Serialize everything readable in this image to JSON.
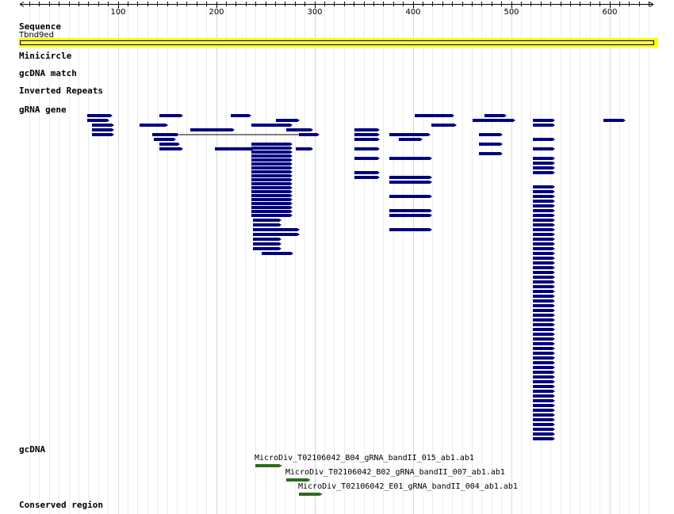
{
  "ruler": {
    "ticks": [
      "100",
      "200",
      "300",
      "400",
      "500",
      "600"
    ],
    "tick_positions_bp": [
      100,
      200,
      300,
      400,
      500,
      600
    ],
    "start_bp": 1,
    "end_bp": 650
  },
  "tracks": {
    "sequence": {
      "label": "Sequence",
      "sublabel": "Tbnd9ed",
      "highlight_color": "#ffff00"
    },
    "minicircle": {
      "label": "Minicircle"
    },
    "gcdna_match": {
      "label": "gcDNA match"
    },
    "inverted_repeats": {
      "label": "Inverted Repeats"
    },
    "grna_gene": {
      "label": "gRNA gene",
      "feature_color": "#000080"
    },
    "gcdna": {
      "label": "gcDNA",
      "feature_color": "#2e6b1e",
      "clones": [
        {
          "name": "MicroDiv_T02106042_B04_gRNA_bandII_015_ab1.ab1"
        },
        {
          "name": "MicroDiv_T02106042_B02_gRNA_bandII_007_ab1.ab1"
        },
        {
          "name": "MicroDiv_T02106042_E01_gRNA_bandII_004_ab1.ab1"
        }
      ]
    },
    "conserved_region": {
      "label": "Conserved region"
    }
  }
}
